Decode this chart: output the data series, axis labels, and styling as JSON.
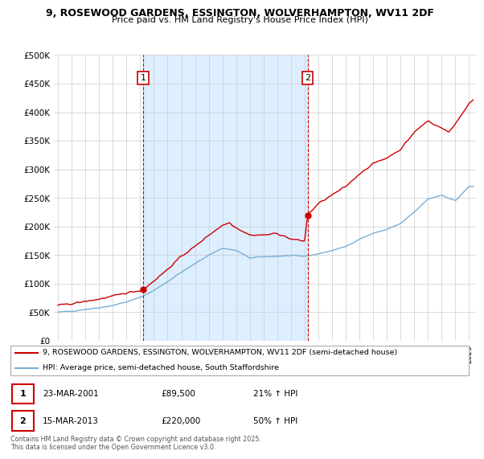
{
  "title_line1": "9, ROSEWOOD GARDENS, ESSINGTON, WOLVERHAMPTON, WV11 2DF",
  "title_line2": "Price paid vs. HM Land Registry's House Price Index (HPI)",
  "ylim": [
    0,
    500000
  ],
  "yticks": [
    0,
    50000,
    100000,
    150000,
    200000,
    250000,
    300000,
    350000,
    400000,
    450000,
    500000
  ],
  "ytick_labels": [
    "£0",
    "£50K",
    "£100K",
    "£150K",
    "£200K",
    "£250K",
    "£300K",
    "£350K",
    "£400K",
    "£450K",
    "£500K"
  ],
  "sale1_x": 2001.22,
  "sale1_y": 89500,
  "sale1_label": "1",
  "sale2_x": 2013.21,
  "sale2_y": 220000,
  "sale2_label": "2",
  "sale_color": "#cc0000",
  "hpi_color": "#7aafd4",
  "shade_color": "#ddeeff",
  "vline_color": "#cc0000",
  "grid_color": "#cccccc",
  "bg_color": "#ffffff",
  "legend_line1": "9, ROSEWOOD GARDENS, ESSINGTON, WOLVERHAMPTON, WV11 2DF (semi-detached house)",
  "legend_line2": "HPI: Average price, semi-detached house, South Staffordshire",
  "table_row1": [
    "1",
    "23-MAR-2001",
    "£89,500",
    "21% ↑ HPI"
  ],
  "table_row2": [
    "2",
    "15-MAR-2013",
    "£220,000",
    "50% ↑ HPI"
  ],
  "footer": "Contains HM Land Registry data © Crown copyright and database right 2025.\nThis data is licensed under the Open Government Licence v3.0.",
  "xlim_start": 1994.7,
  "xlim_end": 2025.5
}
